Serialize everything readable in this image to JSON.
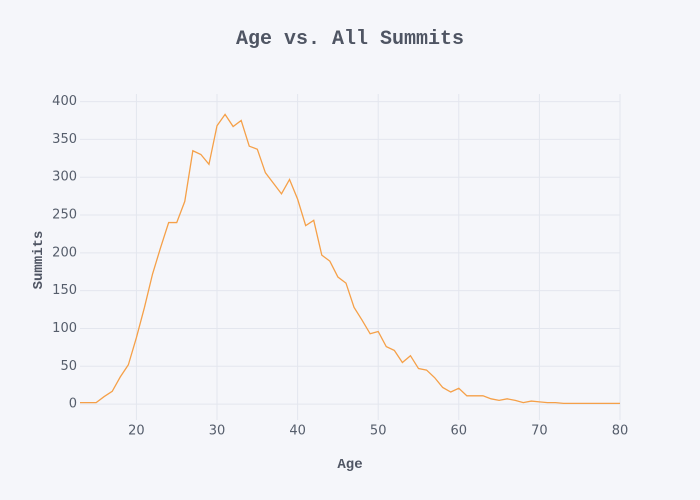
{
  "chart_data": {
    "type": "line",
    "title": "Age vs. All Summits",
    "x_label": "Age",
    "y_label": "Summits",
    "x": [
      13,
      14,
      15,
      16,
      17,
      18,
      19,
      20,
      21,
      22,
      23,
      24,
      25,
      26,
      27,
      28,
      29,
      30,
      31,
      32,
      33,
      34,
      35,
      36,
      37,
      38,
      39,
      40,
      41,
      42,
      43,
      44,
      45,
      46,
      47,
      48,
      49,
      50,
      51,
      52,
      53,
      54,
      55,
      56,
      57,
      58,
      59,
      60,
      61,
      62,
      63,
      64,
      65,
      66,
      67,
      68,
      69,
      70,
      71,
      72,
      73,
      74,
      75,
      76,
      77,
      78,
      79,
      80
    ],
    "series": [
      {
        "name": "Summits",
        "color": "#f5a048",
        "values": [
          2,
          2,
          2,
          10,
          17,
          36,
          52,
          88,
          128,
          172,
          207,
          240,
          240,
          268,
          335,
          330,
          317,
          368,
          383,
          367,
          375,
          341,
          337,
          306,
          292,
          278,
          297,
          271,
          236,
          243,
          197,
          189,
          168,
          160,
          128,
          111,
          93,
          96,
          76,
          71,
          55,
          64,
          47,
          45,
          35,
          22,
          16,
          21,
          11,
          11,
          11,
          7,
          5,
          7,
          5,
          2,
          4,
          3,
          2,
          2,
          1,
          1,
          1,
          1,
          1,
          1,
          1,
          1
        ]
      }
    ],
    "xlim": [
      13,
      80
    ],
    "ylim": [
      -21,
      410
    ],
    "xticks": [
      20,
      30,
      40,
      50,
      60,
      70,
      80
    ],
    "yticks": [
      0,
      50,
      100,
      150,
      200,
      250,
      300,
      350,
      400
    ],
    "grid": true
  }
}
